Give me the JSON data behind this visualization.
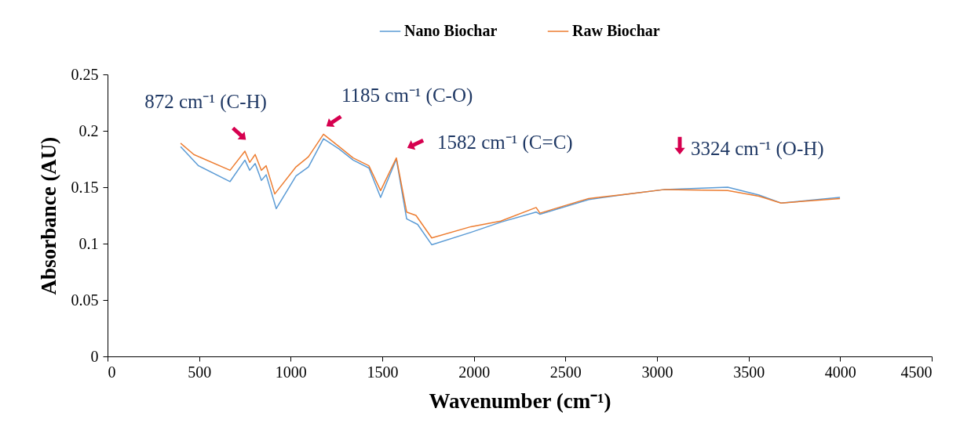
{
  "chart_data": {
    "type": "line",
    "xlabel": "Wavenumber (cm⁻¹)",
    "ylabel": "Absorbance (AU)",
    "xlim": [
      0,
      4500
    ],
    "xticks": [
      0,
      500,
      1000,
      1500,
      2000,
      2500,
      3000,
      3500,
      4000,
      4500
    ],
    "ylim": [
      0,
      0.25
    ],
    "yticks": [
      0,
      0.05,
      0.1,
      0.15,
      0.2,
      0.25
    ],
    "grid": false,
    "legend": "top",
    "marker": "none",
    "line_style": "solid",
    "annotations": [
      "872 cm⁻¹ (C-H)",
      "1185 cm⁻¹ (C-O)",
      "1582 cm⁻¹ (C=C)",
      "3324 cm⁻¹ (O-H)"
    ],
    "series": [
      {
        "name": "Nano Biochar",
        "color": "#5b9bd5",
        "x": [
          399,
          497,
          669,
          750,
          776,
          806,
          840,
          866,
          921,
          1029,
          1097,
          1179,
          1264,
          1341,
          1427,
          1491,
          1577,
          1633,
          1693,
          1770,
          1984,
          2147,
          2340,
          2361,
          2627,
          2841,
          3043,
          3386,
          3557,
          3677,
          3999
        ],
        "values": [
          0.186,
          0.169,
          0.155,
          0.174,
          0.165,
          0.171,
          0.156,
          0.161,
          0.131,
          0.16,
          0.168,
          0.193,
          0.184,
          0.174,
          0.167,
          0.141,
          0.175,
          0.122,
          0.117,
          0.099,
          0.11,
          0.119,
          0.128,
          0.126,
          0.139,
          0.144,
          0.148,
          0.15,
          0.143,
          0.136,
          0.141
        ]
      },
      {
        "name": "Raw Biochar",
        "color": "#ed7d31",
        "x": [
          399,
          471,
          669,
          750,
          776,
          806,
          840,
          866,
          913,
          1029,
          1097,
          1179,
          1264,
          1341,
          1427,
          1491,
          1577,
          1633,
          1684,
          1770,
          1984,
          2147,
          2340,
          2361,
          2627,
          2841,
          3043,
          3386,
          3557,
          3677,
          3999
        ],
        "values": [
          0.189,
          0.179,
          0.165,
          0.182,
          0.172,
          0.179,
          0.165,
          0.169,
          0.144,
          0.168,
          0.177,
          0.197,
          0.186,
          0.176,
          0.169,
          0.147,
          0.176,
          0.128,
          0.125,
          0.105,
          0.115,
          0.12,
          0.132,
          0.127,
          0.14,
          0.144,
          0.148,
          0.147,
          0.142,
          0.136,
          0.14
        ]
      }
    ]
  }
}
